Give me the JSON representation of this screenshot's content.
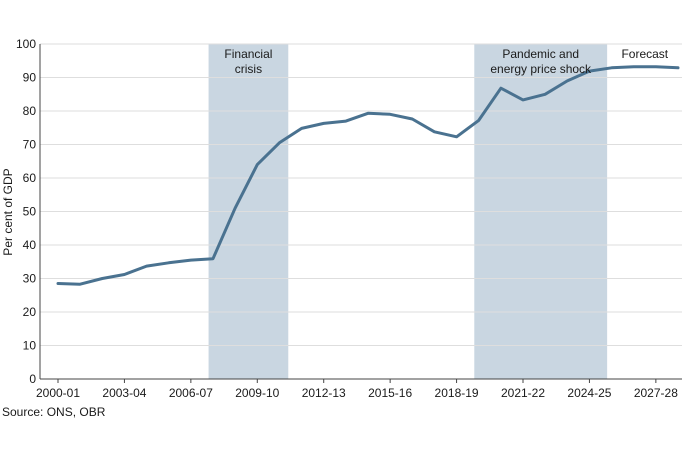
{
  "chart_data": {
    "type": "line",
    "ylabel": "Per cent of GDP",
    "ylim": [
      0,
      100
    ],
    "yticks": [
      0,
      10,
      20,
      30,
      40,
      50,
      60,
      70,
      80,
      90,
      100
    ],
    "xtick_labels": [
      "2000-01",
      "2003-04",
      "2006-07",
      "2009-10",
      "2012-13",
      "2015-16",
      "2018-19",
      "2021-22",
      "2024-25",
      "2027-28"
    ],
    "xtick_index": [
      0,
      3,
      6,
      9,
      12,
      15,
      18,
      21,
      24,
      27
    ],
    "grid": true,
    "line_color": "#4a7290",
    "shade_color": "#c9d6e1",
    "series": [
      {
        "x": [
          "2000-01",
          "2001-02",
          "2002-03",
          "2003-04",
          "2004-05",
          "2005-06",
          "2006-07",
          "2007-08",
          "2008-09",
          "2009-10",
          "2010-11",
          "2011-12",
          "2012-13",
          "2013-14",
          "2014-15",
          "2015-16",
          "2016-17",
          "2017-18",
          "2018-19",
          "2019-20",
          "2020-21",
          "2021-22",
          "2022-23",
          "2023-24",
          "2024-25",
          "2025-26",
          "2026-27",
          "2027-28",
          "2028-29"
        ],
        "values": [
          28.5,
          28.3,
          30.0,
          31.2,
          33.7,
          34.7,
          35.5,
          35.9,
          51.0,
          64.0,
          70.5,
          74.8,
          76.3,
          77.0,
          79.3,
          79.0,
          77.6,
          73.8,
          72.3,
          77.2,
          86.8,
          83.3,
          85.0,
          89.0,
          91.9,
          92.9,
          93.2,
          93.2,
          92.9
        ]
      }
    ],
    "shaded_regions": [
      {
        "label_lines": [
          "Financial",
          "crisis"
        ],
        "x_start": 6.8,
        "x_end": 10.4
      },
      {
        "label_lines": [
          "Pandemic and",
          "energy price shock"
        ],
        "x_start": 18.8,
        "x_end": 24.8
      }
    ],
    "annotations": [
      {
        "text": "Forecast",
        "x": 26.5
      }
    ]
  },
  "source": "Source: ONS, OBR"
}
